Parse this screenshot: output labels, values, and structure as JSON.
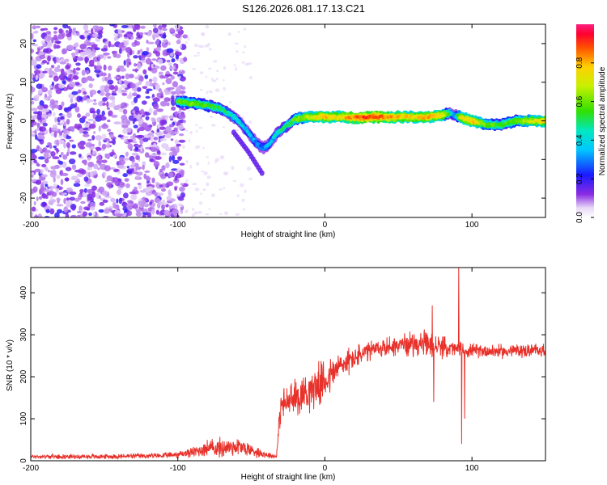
{
  "figure_title": "S126.2026.081.17.13.C21",
  "colors": {
    "trace": "#e8312a",
    "axis": "#000000",
    "grid_bg": "#ffffff"
  },
  "chart_data": [
    {
      "type": "heatmap",
      "title": "S126.2026.081.17.13.C21",
      "xlabel": "Height of straight line (km)",
      "ylabel": "Frequency (Hz)",
      "xlim": [
        -200,
        150
      ],
      "ylim": [
        -25,
        25
      ],
      "x_ticks": [
        -200,
        -100,
        0,
        100
      ],
      "y_ticks": [
        -20,
        -10,
        0,
        10,
        20
      ],
      "ridge": {
        "x": [
          -100,
          -90,
          -80,
          -70,
          -60,
          -52,
          -46,
          -42,
          -38,
          -32,
          -25,
          -20,
          -10,
          0,
          10,
          20,
          30,
          40,
          50,
          60,
          70,
          80,
          85,
          88,
          92,
          100,
          110,
          120,
          130,
          140,
          150
        ],
        "freq_hz": [
          5,
          4.5,
          4,
          3,
          0.5,
          -3,
          -6,
          -7,
          -6,
          -3,
          -1,
          0.5,
          1,
          1,
          1,
          0.8,
          1,
          1,
          1,
          1,
          1,
          1.5,
          2,
          1.5,
          1,
          0,
          -1,
          -1,
          0,
          0,
          0
        ],
        "amplitude": [
          0.55,
          0.6,
          0.55,
          0.5,
          0.4,
          0.35,
          0.3,
          0.3,
          0.35,
          0.45,
          0.5,
          0.6,
          0.7,
          0.8,
          0.75,
          0.85,
          0.9,
          0.85,
          0.8,
          0.75,
          0.8,
          0.75,
          0.5,
          0.3,
          0.7,
          0.8,
          0.6,
          0.55,
          0.6,
          0.7,
          0.75
        ]
      },
      "secondary_branch": {
        "x": [
          -62,
          -52,
          -42
        ],
        "freq_hz": [
          -3,
          -8,
          -14
        ]
      },
      "noise_region_x": [
        -200,
        -95
      ],
      "colorbar": {
        "label": "Normalized spectral amplitude",
        "range": [
          0.0,
          1.0
        ],
        "ticks": [
          0.0,
          0.2,
          0.4,
          0.6,
          0.8
        ],
        "tick_labels": [
          "0.0",
          "0.2",
          "0.4",
          "0.6",
          "0.8"
        ]
      }
    },
    {
      "type": "line",
      "xlabel": "Height of straight line (km)",
      "ylabel": "SNR (10 * v/v)",
      "xlim": [
        -200,
        150
      ],
      "ylim": [
        0,
        460
      ],
      "x_ticks": [
        -200,
        -100,
        0,
        100
      ],
      "y_ticks": [
        0,
        100,
        200,
        300,
        400
      ],
      "envelope": {
        "x": [
          -200,
          -150,
          -110,
          -100,
          -90,
          -80,
          -70,
          -60,
          -50,
          -40,
          -33,
          -30,
          -20,
          -10,
          0,
          10,
          20,
          30,
          40,
          50,
          60,
          70,
          80,
          90,
          100,
          110,
          120,
          130,
          140,
          150
        ],
        "mean": [
          10,
          10,
          12,
          15,
          20,
          30,
          30,
          35,
          25,
          15,
          10,
          130,
          150,
          170,
          190,
          225,
          245,
          260,
          270,
          275,
          280,
          275,
          270,
          265,
          262,
          262,
          260,
          262,
          262,
          265
        ],
        "spread": [
          6,
          7,
          8,
          10,
          15,
          25,
          30,
          30,
          20,
          10,
          6,
          45,
          55,
          60,
          60,
          45,
          35,
          30,
          30,
          30,
          35,
          40,
          30,
          25,
          20,
          20,
          20,
          20,
          20,
          20
        ]
      },
      "spikes": [
        {
          "x": 73,
          "y": 370
        },
        {
          "x": 74,
          "y": 140
        },
        {
          "x": 91,
          "y": 460
        },
        {
          "x": 93,
          "y": 40
        },
        {
          "x": 95,
          "y": 100
        }
      ]
    }
  ]
}
